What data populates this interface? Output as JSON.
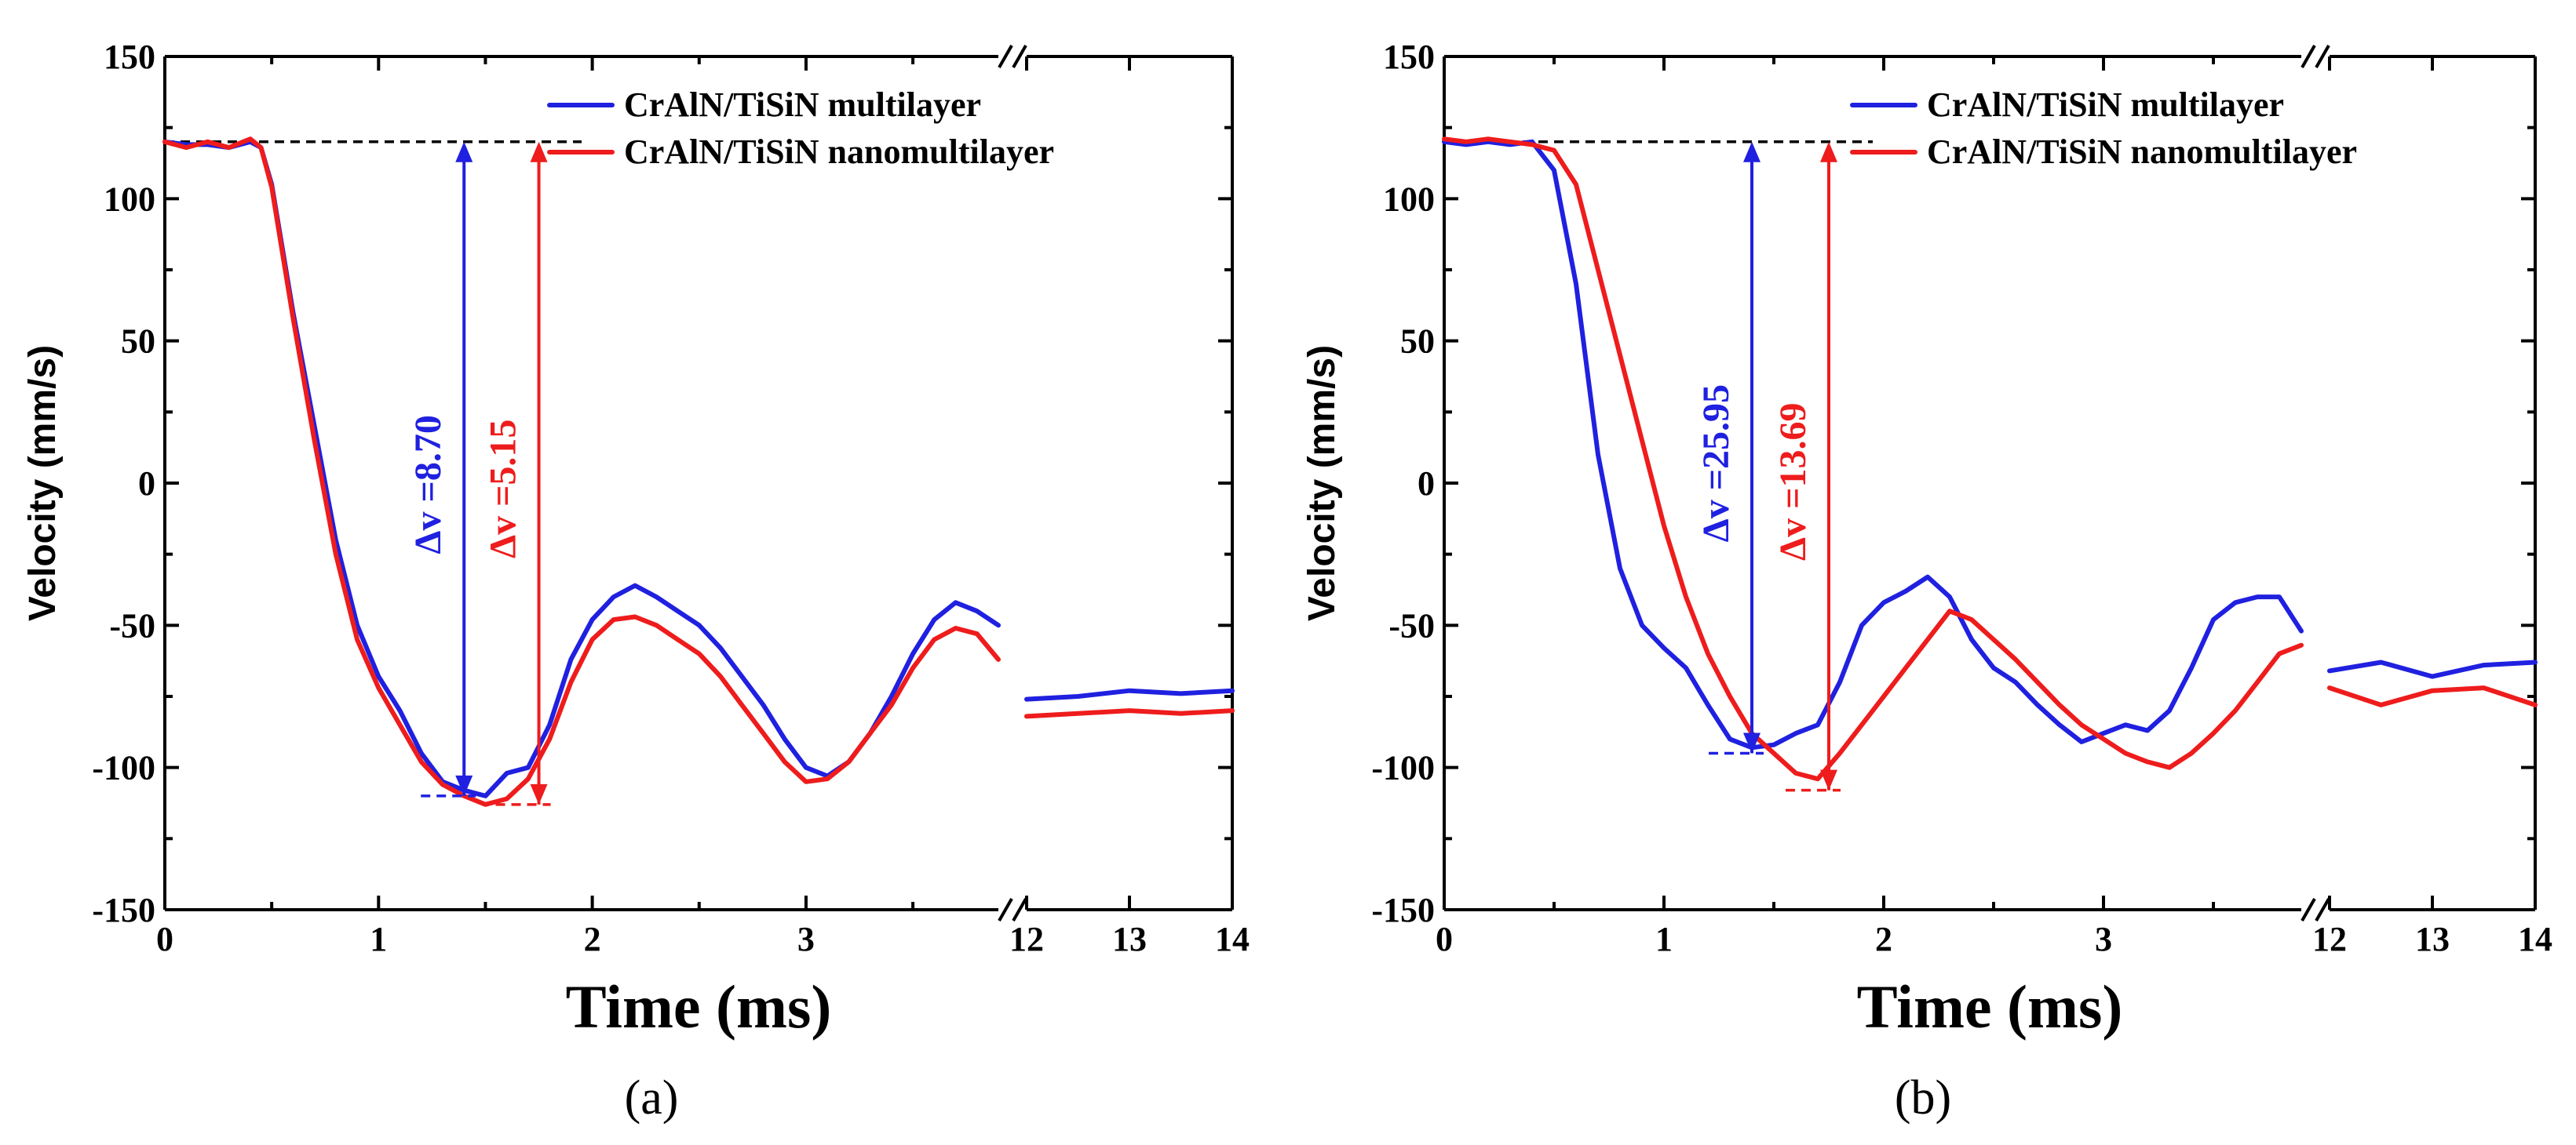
{
  "figure": {
    "panel_labels": [
      "(a)",
      "(b)"
    ]
  },
  "chart_data": [
    {
      "type": "line",
      "panel": "(a)",
      "xlabel": "Time (ms)",
      "ylabel": "Velocity (mm/s)",
      "ylim": [
        -150,
        150
      ],
      "y_ticks": [
        150,
        100,
        50,
        0,
        -50,
        -100,
        -150
      ],
      "x_ticks_left": [
        "0",
        "1",
        "2",
        "3"
      ],
      "x_ticks_right": [
        "12",
        "13",
        "14"
      ],
      "axis_break": "//",
      "xlim_left": [
        0,
        3.9
      ],
      "xlim_right": [
        12,
        14
      ],
      "legend_position": "top-right",
      "baseline": 120,
      "series": [
        {
          "name": "CrAlN/TiSiN multilayer",
          "color": "#2020e0",
          "x": [
            0,
            0.1,
            0.2,
            0.3,
            0.4,
            0.45,
            0.5,
            0.6,
            0.7,
            0.8,
            0.9,
            1.0,
            1.1,
            1.2,
            1.3,
            1.4,
            1.5,
            1.6,
            1.7,
            1.8,
            1.9,
            2.0,
            2.1,
            2.2,
            2.3,
            2.4,
            2.5,
            2.6,
            2.7,
            2.8,
            2.9,
            3.0,
            3.1,
            3.2,
            3.3,
            3.4,
            3.5,
            3.6,
            3.7,
            3.8,
            3.9
          ],
          "y": [
            120,
            119,
            119,
            118,
            120,
            118,
            105,
            60,
            20,
            -20,
            -50,
            -68,
            -80,
            -95,
            -105,
            -108,
            -110,
            -102,
            -100,
            -85,
            -62,
            -48,
            -40,
            -36,
            -40,
            -45,
            -50,
            -58,
            -68,
            -78,
            -90,
            -100,
            -103,
            -98,
            -88,
            -75,
            -60,
            -48,
            -42,
            -45,
            -50
          ],
          "x_right": [
            12,
            12.5,
            13,
            13.5,
            14
          ],
          "y_right": [
            -76,
            -75,
            -73,
            -74,
            -73
          ]
        },
        {
          "name": "CrAlN/TiSiN nanomultilayer",
          "color": "#ee1c1c",
          "x": [
            0,
            0.1,
            0.2,
            0.3,
            0.4,
            0.45,
            0.5,
            0.6,
            0.7,
            0.8,
            0.9,
            1.0,
            1.1,
            1.2,
            1.3,
            1.4,
            1.5,
            1.6,
            1.7,
            1.8,
            1.9,
            2.0,
            2.1,
            2.2,
            2.3,
            2.4,
            2.5,
            2.6,
            2.7,
            2.8,
            2.9,
            3.0,
            3.1,
            3.2,
            3.3,
            3.4,
            3.5,
            3.6,
            3.7,
            3.8,
            3.9
          ],
          "y": [
            120,
            118,
            120,
            118,
            121,
            118,
            104,
            58,
            15,
            -25,
            -55,
            -72,
            -85,
            -98,
            -106,
            -110,
            -113,
            -111,
            -104,
            -90,
            -70,
            -55,
            -48,
            -47,
            -50,
            -55,
            -60,
            -68,
            -78,
            -88,
            -98,
            -105,
            -104,
            -98,
            -88,
            -78,
            -65,
            -55,
            -51,
            -53,
            -62
          ],
          "x_right": [
            12,
            12.5,
            13,
            13.5,
            14
          ],
          "y_right": [
            -82,
            -81,
            -80,
            -81,
            -80
          ]
        }
      ],
      "annotations": [
        {
          "text": "Δv =8.70",
          "color": "#2020e0",
          "x": 1.4,
          "y_from": -110,
          "y_to": 120
        },
        {
          "text": "Δv =5.15",
          "color": "#ee1c1c",
          "x": 1.75,
          "y_from": -113,
          "y_to": 120
        }
      ]
    },
    {
      "type": "line",
      "panel": "(b)",
      "xlabel": "Time (ms)",
      "ylabel": "Velocity (mm/s)",
      "ylim": [
        -150,
        150
      ],
      "y_ticks": [
        150,
        100,
        50,
        0,
        -50,
        -100,
        -150
      ],
      "x_ticks_left": [
        "0",
        "1",
        "2",
        "3"
      ],
      "x_ticks_right": [
        "12",
        "13",
        "14"
      ],
      "axis_break": "//",
      "xlim_left": [
        0,
        3.9
      ],
      "xlim_right": [
        12,
        14
      ],
      "legend_position": "top-right",
      "baseline": 120,
      "series": [
        {
          "name": "CrAlN/TiSiN multilayer",
          "color": "#2020e0",
          "x": [
            0,
            0.1,
            0.2,
            0.3,
            0.4,
            0.5,
            0.6,
            0.7,
            0.8,
            0.9,
            1.0,
            1.1,
            1.2,
            1.3,
            1.4,
            1.5,
            1.6,
            1.7,
            1.8,
            1.9,
            2.0,
            2.1,
            2.2,
            2.3,
            2.4,
            2.5,
            2.6,
            2.7,
            2.8,
            2.9,
            3.0,
            3.1,
            3.2,
            3.3,
            3.4,
            3.5,
            3.6,
            3.7,
            3.8,
            3.9
          ],
          "y": [
            120,
            119,
            120,
            119,
            120,
            110,
            70,
            10,
            -30,
            -50,
            -58,
            -65,
            -78,
            -90,
            -93,
            -92,
            -88,
            -85,
            -70,
            -50,
            -42,
            -38,
            -33,
            -40,
            -55,
            -65,
            -70,
            -78,
            -85,
            -91,
            -88,
            -85,
            -87,
            -80,
            -65,
            -48,
            -42,
            -40,
            -40,
            -52
          ],
          "x_right": [
            12,
            12.5,
            13,
            13.5,
            14
          ],
          "y_right": [
            -66,
            -63,
            -68,
            -64,
            -63
          ]
        },
        {
          "name": "CrAlN/TiSiN nanomultilayer",
          "color": "#ee1c1c",
          "x": [
            0,
            0.1,
            0.2,
            0.3,
            0.4,
            0.5,
            0.6,
            0.7,
            0.8,
            0.9,
            1.0,
            1.1,
            1.2,
            1.3,
            1.4,
            1.5,
            1.6,
            1.7,
            1.8,
            1.9,
            2.0,
            2.1,
            2.2,
            2.3,
            2.4,
            2.5,
            2.6,
            2.7,
            2.8,
            2.9,
            3.0,
            3.1,
            3.2,
            3.3,
            3.4,
            3.5,
            3.6,
            3.7,
            3.8,
            3.9
          ],
          "y": [
            121,
            120,
            121,
            120,
            119,
            117,
            105,
            75,
            45,
            15,
            -15,
            -40,
            -60,
            -75,
            -88,
            -95,
            -102,
            -104,
            -95,
            -85,
            -75,
            -65,
            -55,
            -45,
            -48,
            -55,
            -62,
            -70,
            -78,
            -85,
            -90,
            -95,
            -98,
            -100,
            -95,
            -88,
            -80,
            -70,
            -60,
            -57
          ],
          "x_right": [
            12,
            12.5,
            13,
            13.5,
            14
          ],
          "y_right": [
            -72,
            -78,
            -73,
            -72,
            -78
          ]
        }
      ],
      "annotations": [
        {
          "text": "Δv =25.95",
          "color": "#2020e0",
          "x": 1.4,
          "y_from": -95,
          "y_to": 120
        },
        {
          "text": "Δv =13.69",
          "color": "#ee1c1c",
          "x": 1.75,
          "y_from": -108,
          "y_to": 120
        }
      ]
    }
  ]
}
